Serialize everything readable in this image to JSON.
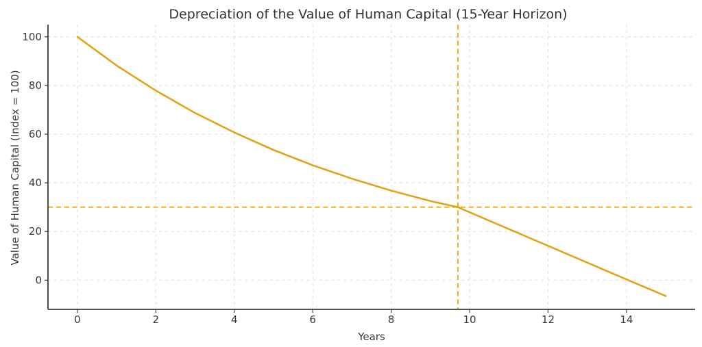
{
  "chart_data": {
    "type": "line",
    "title": "Depreciation of the Value of Human Capital (15-Year Horizon)",
    "xlabel": "Years",
    "ylabel": "Value of Human Capital (Index = 100)",
    "x": [
      0,
      1,
      2,
      3,
      4,
      5,
      6,
      7,
      8,
      9,
      9.7,
      10,
      11,
      12,
      13,
      14,
      15
    ],
    "values": [
      100,
      88.2,
      77.9,
      68.7,
      60.7,
      53.5,
      47.2,
      41.7,
      36.8,
      32.5,
      30,
      27.9,
      21.0,
      14.1,
      7.2,
      0.3,
      -6.5
    ],
    "xtick_values": [
      0,
      2,
      4,
      6,
      8,
      10,
      12,
      14
    ],
    "ytick_values": [
      0,
      20,
      40,
      60,
      80,
      100
    ],
    "xlim": [
      -0.75,
      15.75
    ],
    "ylim": [
      -12,
      105
    ],
    "grid": true,
    "legend": "none",
    "reference_lines": {
      "threshold_value": 30,
      "threshold_year": 9.7,
      "style": "dashed"
    },
    "colors": {
      "line": "#e2a318",
      "dashed": "#f2a60d",
      "grid": "#d9d9d9",
      "spine": "#3c3c3c",
      "tick": "#3c3c3c",
      "text": "#3a3a3a",
      "title": "#333333",
      "background": "#ffffff"
    }
  }
}
